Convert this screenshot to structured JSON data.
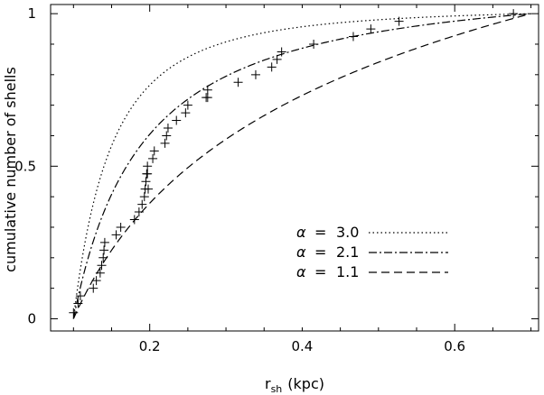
{
  "chart_data": {
    "type": "line",
    "xlabel": "r",
    "xlabel_sub": "sh",
    "xlabel_unit": "(kpc)",
    "ylabel": "cumulative number of shells",
    "xlim": [
      0.07,
      0.71
    ],
    "ylim": [
      -0.04,
      1.03
    ],
    "x_ticks": [
      0.2,
      0.4,
      0.6
    ],
    "x_tick_labels": [
      "0.2",
      "0.4",
      "0.6"
    ],
    "y_ticks": [
      0,
      0.5,
      1
    ],
    "y_tick_labels": [
      "0",
      "0.5",
      "1"
    ],
    "grid": false,
    "legend_position": "lower-right",
    "curves_model": {
      "r_min": 0.1,
      "r_max": 0.7
    },
    "series": [
      {
        "alpha_symbol": "α",
        "eq": "=",
        "value": "3.0",
        "alpha": 3.0,
        "style": "dotted"
      },
      {
        "alpha_symbol": "α",
        "eq": "=",
        "value": "2.1",
        "alpha": 2.1,
        "style": "dashdot"
      },
      {
        "alpha_symbol": "α",
        "eq": "=",
        "value": "1.1",
        "alpha": 1.1,
        "style": "dashed"
      }
    ],
    "observations": {
      "marker": "plus",
      "x": [
        0.1,
        0.106,
        0.109,
        0.126,
        0.13,
        0.135,
        0.137,
        0.139,
        0.14,
        0.141,
        0.156,
        0.162,
        0.18,
        0.186,
        0.19,
        0.193,
        0.194,
        0.195,
        0.196,
        0.197,
        0.197,
        0.198,
        0.204,
        0.206,
        0.22,
        0.222,
        0.224,
        0.235,
        0.247,
        0.25,
        0.274,
        0.276,
        0.276,
        0.316,
        0.339,
        0.36,
        0.367,
        0.373,
        0.415,
        0.467,
        0.49,
        0.527,
        0.677
      ],
      "y": [
        0.02,
        0.05,
        0.075,
        0.1,
        0.125,
        0.15,
        0.175,
        0.2,
        0.225,
        0.25,
        0.275,
        0.3,
        0.325,
        0.35,
        0.375,
        0.4,
        0.425,
        0.45,
        0.475,
        0.5,
        0.475,
        0.425,
        0.525,
        0.55,
        0.575,
        0.6,
        0.625,
        0.65,
        0.675,
        0.7,
        0.725,
        0.75,
        0.725,
        0.775,
        0.8,
        0.825,
        0.85,
        0.875,
        0.9,
        0.925,
        0.95,
        0.975,
        1.0
      ]
    }
  }
}
